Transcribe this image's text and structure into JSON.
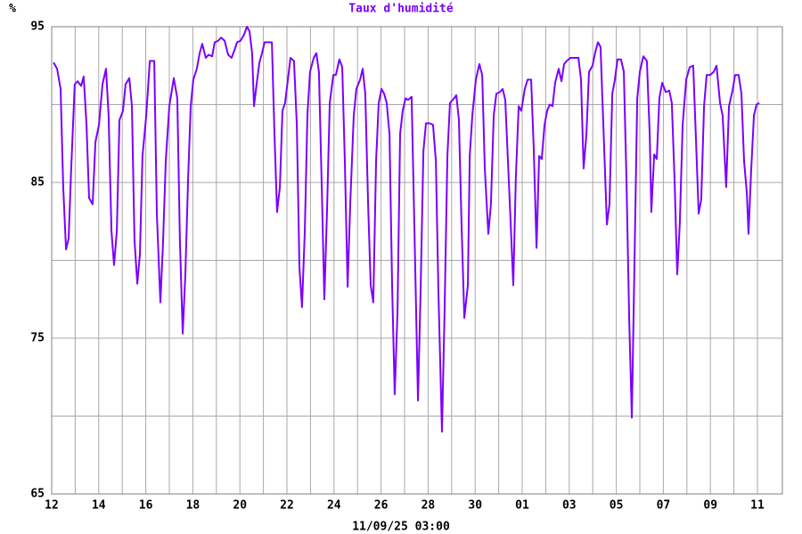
{
  "chart_data": {
    "type": "line",
    "title": "Taux d'humidité",
    "y_unit_label": "%",
    "x_label": "11/09/25 03:00",
    "color": "#7b00ff",
    "grid": true,
    "xlim": [
      0,
      31.06
    ],
    "ylim": [
      65,
      95
    ],
    "xticks": [
      {
        "value": 0,
        "label": "12"
      },
      {
        "value": 2,
        "label": "14"
      },
      {
        "value": 4,
        "label": "16"
      },
      {
        "value": 6,
        "label": "18"
      },
      {
        "value": 8,
        "label": "20"
      },
      {
        "value": 10,
        "label": "22"
      },
      {
        "value": 12,
        "label": "24"
      },
      {
        "value": 14,
        "label": "26"
      },
      {
        "value": 16,
        "label": "28"
      },
      {
        "value": 18,
        "label": "30"
      },
      {
        "value": 20,
        "label": "01"
      },
      {
        "value": 22,
        "label": "03"
      },
      {
        "value": 24,
        "label": "05"
      },
      {
        "value": 26,
        "label": "07"
      },
      {
        "value": 28,
        "label": "09"
      },
      {
        "value": 30,
        "label": "11"
      }
    ],
    "x_minor_grid": [
      1,
      3,
      5,
      7,
      9,
      11,
      13,
      15,
      17,
      19,
      21,
      23,
      25,
      27,
      29
    ],
    "yticks": [
      65,
      75,
      85,
      95
    ],
    "y_minor_grid": [
      70,
      80,
      90
    ],
    "x": [
      0.08,
      0.23,
      0.38,
      0.49,
      0.61,
      0.72,
      0.83,
      0.98,
      1.1,
      1.25,
      1.36,
      1.48,
      1.59,
      1.74,
      1.86,
      2.01,
      2.16,
      2.31,
      2.42,
      2.54,
      2.65,
      2.77,
      2.88,
      3.03,
      3.14,
      3.3,
      3.41,
      3.52,
      3.64,
      3.75,
      3.86,
      4.02,
      4.17,
      4.36,
      4.47,
      4.62,
      4.73,
      4.85,
      5.0,
      5.19,
      5.34,
      5.45,
      5.57,
      5.68,
      5.8,
      5.91,
      6.02,
      6.17,
      6.29,
      6.4,
      6.55,
      6.67,
      6.82,
      6.93,
      7.08,
      7.2,
      7.35,
      7.5,
      7.65,
      7.77,
      7.88,
      8.03,
      8.18,
      8.3,
      8.41,
      8.52,
      8.6,
      8.71,
      8.83,
      8.94,
      9.05,
      9.17,
      9.36,
      9.47,
      9.58,
      9.7,
      9.81,
      9.92,
      10.04,
      10.15,
      10.3,
      10.42,
      10.53,
      10.64,
      10.76,
      10.87,
      10.98,
      11.14,
      11.25,
      11.36,
      11.48,
      11.59,
      11.7,
      11.82,
      11.97,
      12.08,
      12.23,
      12.35,
      12.46,
      12.58,
      12.69,
      12.84,
      12.95,
      13.11,
      13.22,
      13.33,
      13.45,
      13.56,
      13.67,
      13.79,
      13.9,
      14.02,
      14.13,
      14.24,
      14.36,
      14.47,
      14.58,
      14.7,
      14.81,
      14.92,
      15.04,
      15.15,
      15.3,
      15.42,
      15.57,
      15.68,
      15.8,
      15.91,
      16.06,
      16.21,
      16.33,
      16.44,
      16.59,
      16.7,
      16.82,
      16.93,
      17.05,
      17.2,
      17.31,
      17.42,
      17.54,
      17.69,
      17.77,
      17.88,
      18.03,
      18.18,
      18.3,
      18.41,
      18.56,
      18.67,
      18.79,
      18.9,
      19.05,
      19.17,
      19.28,
      19.39,
      19.51,
      19.62,
      19.73,
      19.85,
      19.96,
      20.11,
      20.23,
      20.38,
      20.49,
      20.61,
      20.72,
      20.83,
      20.95,
      21.06,
      21.17,
      21.29,
      21.4,
      21.55,
      21.67,
      21.78,
      21.89,
      22.05,
      22.2,
      22.39,
      22.5,
      22.61,
      22.73,
      22.84,
      22.99,
      23.11,
      23.22,
      23.33,
      23.45,
      23.6,
      23.71,
      23.83,
      23.94,
      24.05,
      24.2,
      24.32,
      24.43,
      24.55,
      24.66,
      24.77,
      24.89,
      25.0,
      25.15,
      25.3,
      25.42,
      25.49,
      25.61,
      25.72,
      25.83,
      25.95,
      26.1,
      26.25,
      26.36,
      26.48,
      26.59,
      26.7,
      26.82,
      26.97,
      27.12,
      27.27,
      27.39,
      27.5,
      27.61,
      27.73,
      27.84,
      27.99,
      28.14,
      28.26,
      28.41,
      28.52,
      28.67,
      28.79,
      28.94,
      29.05,
      29.2,
      29.32,
      29.43,
      29.55,
      29.62,
      29.73,
      29.85,
      29.96,
      30.08
    ],
    "values": [
      92.7,
      92.3,
      91.0,
      84.7,
      80.7,
      81.4,
      85.9,
      91.3,
      91.5,
      91.2,
      91.8,
      88.7,
      84.0,
      83.6,
      87.6,
      88.7,
      91.3,
      92.3,
      89.3,
      81.9,
      79.7,
      81.9,
      89.0,
      89.6,
      91.3,
      91.7,
      89.9,
      81.3,
      78.5,
      80.4,
      86.7,
      89.3,
      92.8,
      92.8,
      83.0,
      77.3,
      81.0,
      86.4,
      89.9,
      91.7,
      90.4,
      81.3,
      75.3,
      79.0,
      85.3,
      89.9,
      91.6,
      92.3,
      93.3,
      93.9,
      93.0,
      93.2,
      93.1,
      94.0,
      94.1,
      94.3,
      94.1,
      93.2,
      93.0,
      93.5,
      94.0,
      94.1,
      94.5,
      95.0,
      94.7,
      93.3,
      89.9,
      91.3,
      92.7,
      93.3,
      94.0,
      94.0,
      94.0,
      88.1,
      83.1,
      84.7,
      89.6,
      90.1,
      91.6,
      93.0,
      92.8,
      88.7,
      79.6,
      77.0,
      81.9,
      89.3,
      92.1,
      93.0,
      93.3,
      92.1,
      84.7,
      77.5,
      83.0,
      90.1,
      91.9,
      91.9,
      92.9,
      92.4,
      86.4,
      78.3,
      83.6,
      89.3,
      91.0,
      91.6,
      92.3,
      90.7,
      83.6,
      78.4,
      77.3,
      86.4,
      90.1,
      91.0,
      90.7,
      90.1,
      88.1,
      78.4,
      71.4,
      76.7,
      88.1,
      89.6,
      90.4,
      90.3,
      90.5,
      81.9,
      71.0,
      77.9,
      87.0,
      88.8,
      88.8,
      88.7,
      86.4,
      77.9,
      69.0,
      76.7,
      86.7,
      90.1,
      90.3,
      90.6,
      89.0,
      82.4,
      76.3,
      78.4,
      86.7,
      89.3,
      91.6,
      92.6,
      91.9,
      85.9,
      81.7,
      83.6,
      89.3,
      90.7,
      90.8,
      91.0,
      90.3,
      86.5,
      82.4,
      78.4,
      85.3,
      89.9,
      89.6,
      91.0,
      91.6,
      91.6,
      87.2,
      80.8,
      86.7,
      86.5,
      88.7,
      89.6,
      90.0,
      89.9,
      91.4,
      92.3,
      91.5,
      92.6,
      92.8,
      93.0,
      93.0,
      93.0,
      91.6,
      85.9,
      88.1,
      92.1,
      92.5,
      93.4,
      94.0,
      93.7,
      88.7,
      82.3,
      83.6,
      90.7,
      91.6,
      92.9,
      92.9,
      92.1,
      85.3,
      76.1,
      69.9,
      79.6,
      90.4,
      92.1,
      93.1,
      92.8,
      88.1,
      83.1,
      86.8,
      86.5,
      90.4,
      91.4,
      90.8,
      90.9,
      90.1,
      85.0,
      79.1,
      82.4,
      88.7,
      91.6,
      92.4,
      92.5,
      87.6,
      83.0,
      83.9,
      89.9,
      91.9,
      91.9,
      92.1,
      92.5,
      90.1,
      89.3,
      84.7,
      89.9,
      90.9,
      91.9,
      91.9,
      90.7,
      86.4,
      84.3,
      81.7,
      85.7,
      89.3,
      90.0,
      90.1
    ]
  }
}
